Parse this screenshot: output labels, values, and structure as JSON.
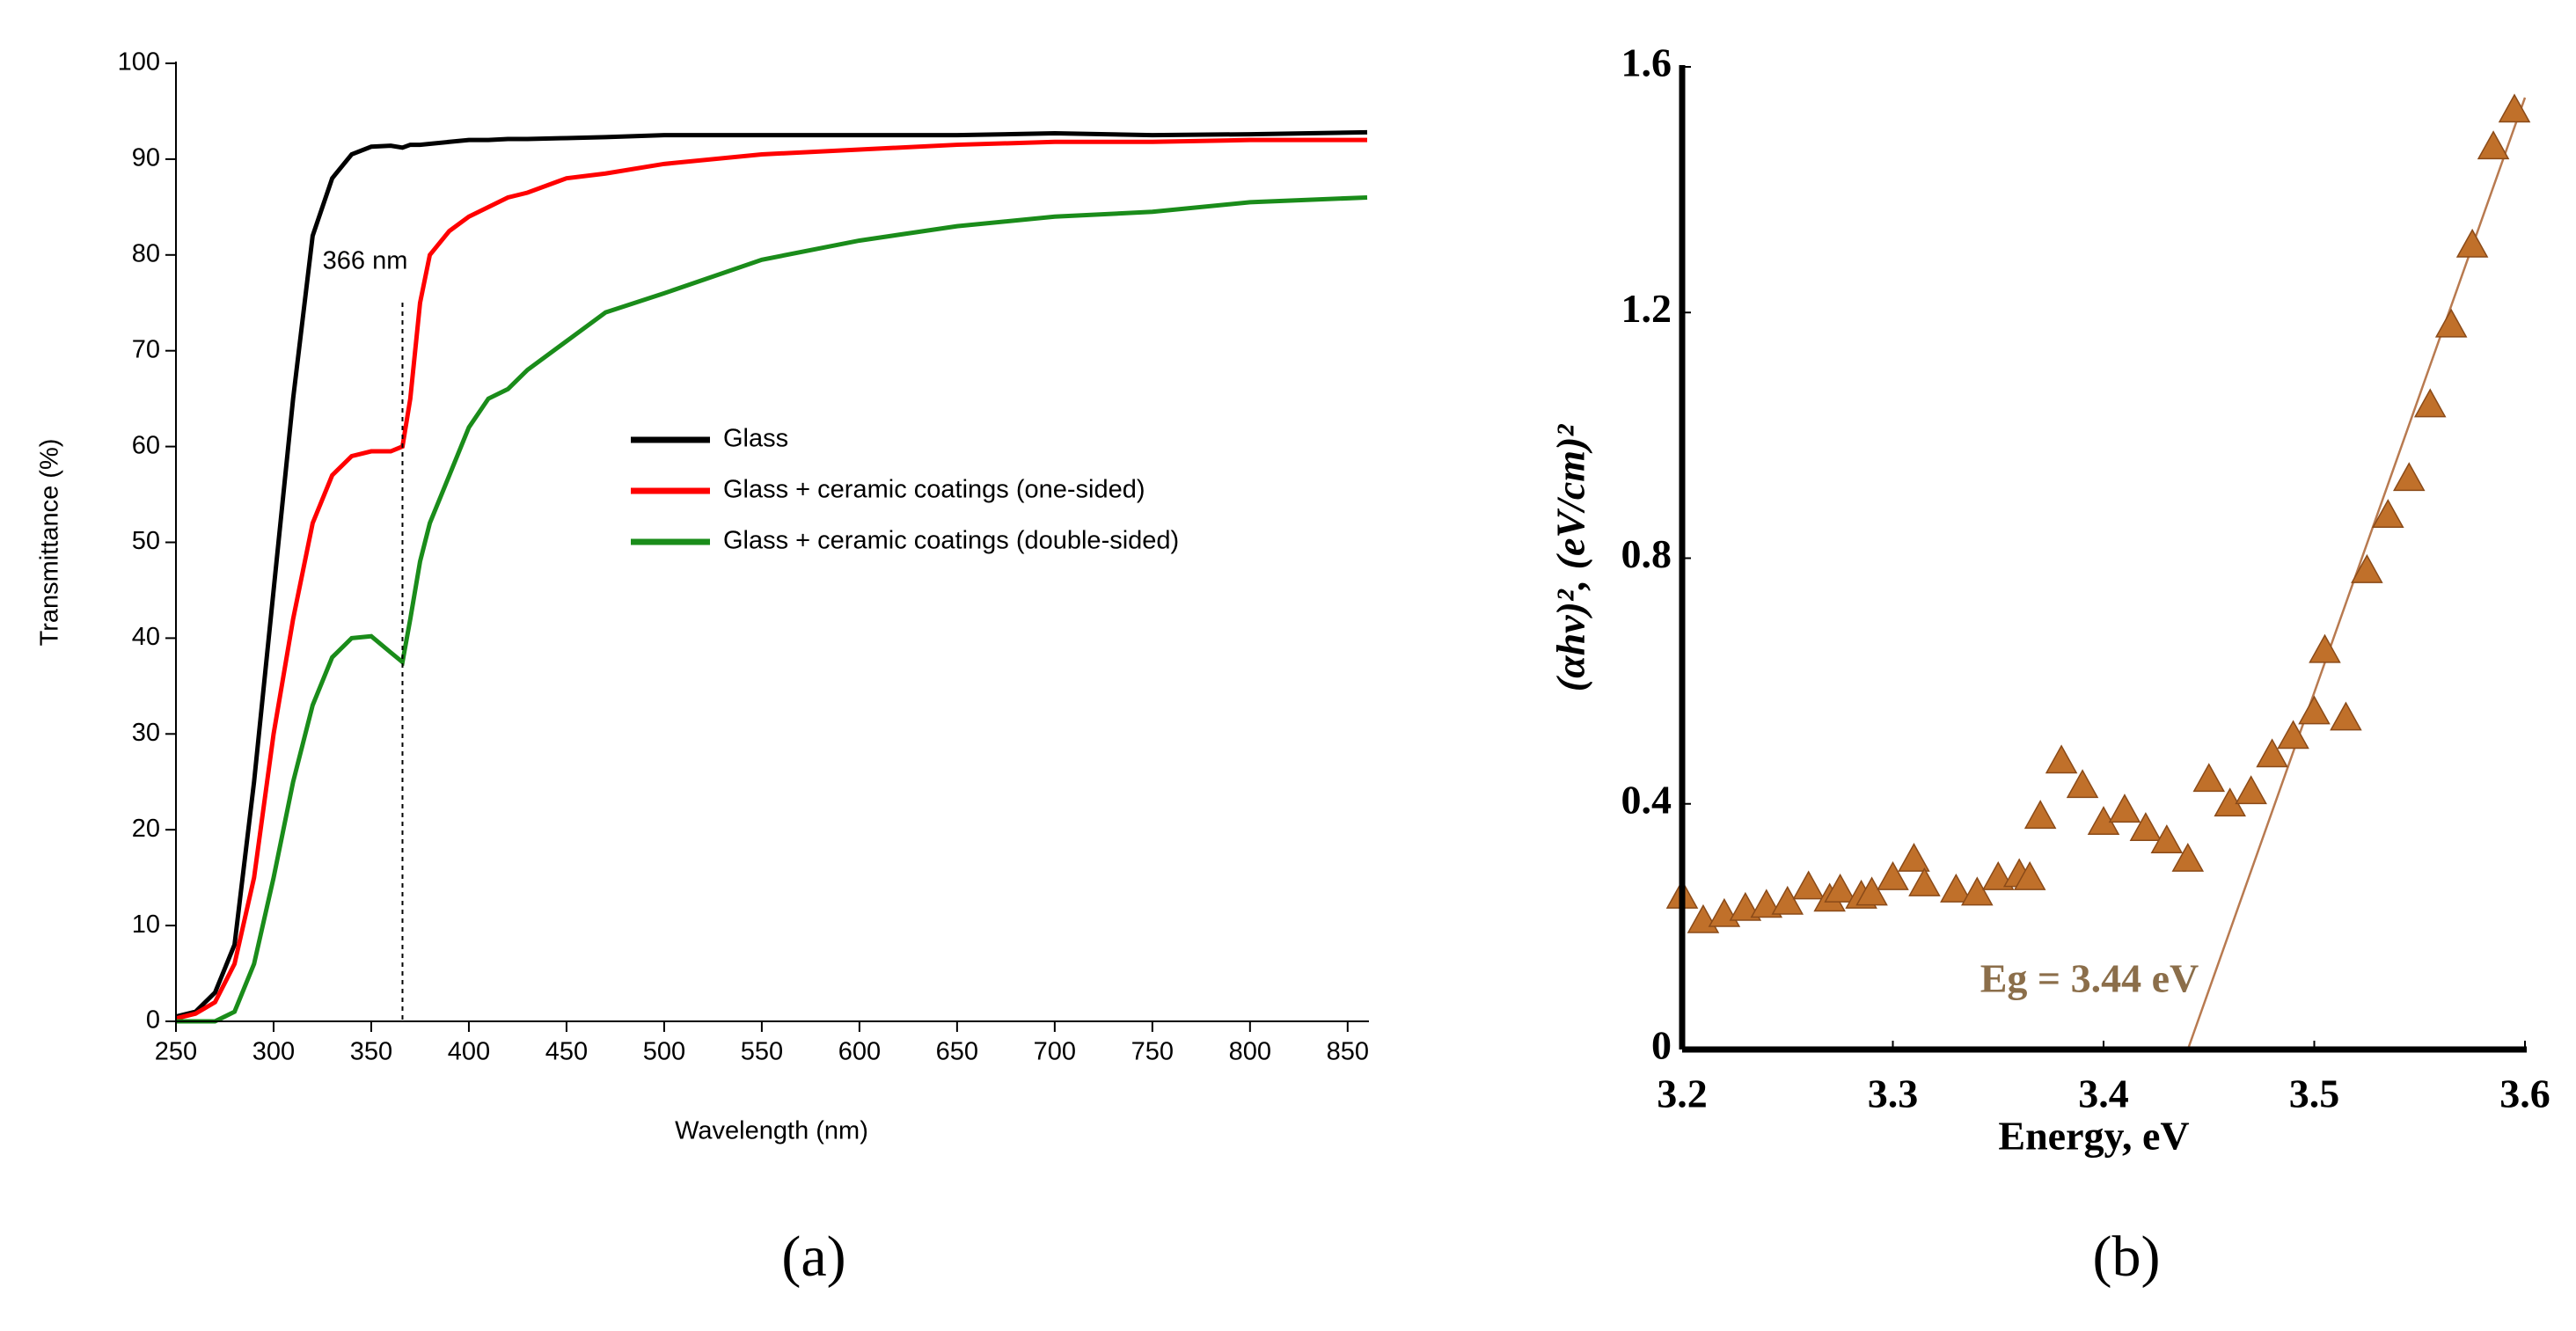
{
  "chart_data": [
    {
      "type": "line",
      "panel_label": "(a)",
      "x_label": "Wavelength (nm)",
      "y_label": "Transmittance (%)",
      "x": [
        250,
        260,
        270,
        280,
        290,
        300,
        310,
        320,
        330,
        340,
        350,
        360,
        366,
        370,
        375,
        380,
        390,
        400,
        410,
        420,
        430,
        450,
        470,
        500,
        550,
        600,
        650,
        700,
        750,
        800,
        860
      ],
      "series": [
        {
          "name": "Glass",
          "color": "#000000",
          "values": [
            0.5,
            1,
            3,
            8,
            25,
            45,
            65,
            82,
            88,
            90.5,
            91.3,
            91.4,
            91.2,
            91.5,
            91.5,
            91.6,
            91.8,
            92,
            92,
            92.1,
            92.1,
            92.2,
            92.3,
            92.5,
            92.5,
            92.5,
            92.5,
            92.7,
            92.5,
            92.6,
            92.8
          ]
        },
        {
          "name": "Glass + ceramic coatings (one-sided)",
          "color": "#ff0000",
          "values": [
            0.3,
            0.8,
            2,
            6,
            15,
            30,
            42,
            52,
            57,
            59,
            59.5,
            59.5,
            60,
            65,
            75,
            80,
            82.5,
            84,
            85,
            86,
            86.5,
            88,
            88.5,
            89.5,
            90.5,
            91,
            91.5,
            91.8,
            91.8,
            92,
            92
          ]
        },
        {
          "name": "Glass + ceramic coatings (double-sided)",
          "color": "#1a8c1a",
          "values": [
            0,
            0,
            0,
            1,
            6,
            15,
            25,
            33,
            38,
            40,
            40.2,
            38.5,
            37.5,
            42,
            48,
            52,
            57,
            62,
            65,
            66,
            68,
            71,
            74,
            76,
            79.5,
            81.5,
            83,
            84,
            84.5,
            85.5,
            86
          ]
        }
      ],
      "xlim": [
        250,
        860
      ],
      "xticks": [
        250,
        300,
        350,
        400,
        450,
        500,
        550,
        600,
        650,
        700,
        750,
        800,
        850
      ],
      "ylim": [
        0,
        100
      ],
      "yticks": [
        0,
        10,
        20,
        30,
        40,
        50,
        60,
        70,
        80,
        90,
        100
      ],
      "annotation": {
        "text": "366 nm",
        "x": 366
      }
    },
    {
      "type": "scatter",
      "panel_label": "(b)",
      "x_label": "Energy, eV",
      "y_label": "(αhν)², (eV/cm)²",
      "x": [
        3.2,
        3.21,
        3.22,
        3.23,
        3.24,
        3.25,
        3.26,
        3.27,
        3.275,
        3.285,
        3.29,
        3.3,
        3.31,
        3.315,
        3.33,
        3.34,
        3.35,
        3.36,
        3.365,
        3.37,
        3.38,
        3.39,
        3.4,
        3.41,
        3.42,
        3.43,
        3.44,
        3.45,
        3.46,
        3.47,
        3.48,
        3.49,
        3.5,
        3.505,
        3.515,
        3.525,
        3.535,
        3.545,
        3.555,
        3.565,
        3.575,
        3.585,
        3.595
      ],
      "values": [
        0.25,
        0.21,
        0.22,
        0.23,
        0.235,
        0.24,
        0.265,
        0.245,
        0.26,
        0.25,
        0.255,
        0.28,
        0.31,
        0.27,
        0.26,
        0.255,
        0.28,
        0.285,
        0.28,
        0.38,
        0.47,
        0.43,
        0.37,
        0.39,
        0.36,
        0.34,
        0.31,
        0.44,
        0.4,
        0.42,
        0.48,
        0.51,
        0.55,
        0.65,
        0.54,
        0.78,
        0.87,
        0.93,
        1.05,
        1.18,
        1.31,
        1.47,
        1.53
      ],
      "color": "#c0702a",
      "fit": {
        "x": [
          3.44,
          3.6
        ],
        "y": [
          0,
          1.55
        ],
        "color": "#b87a50"
      },
      "xlim": [
        3.2,
        3.6
      ],
      "xticks": [
        3.2,
        3.3,
        3.4,
        3.5,
        3.6
      ],
      "ylim": [
        0,
        1.6
      ],
      "yticks": [
        0,
        0.4,
        0.8,
        1.2,
        1.6
      ],
      "annotation": {
        "text": "Eg = 3.44 eV"
      }
    }
  ]
}
